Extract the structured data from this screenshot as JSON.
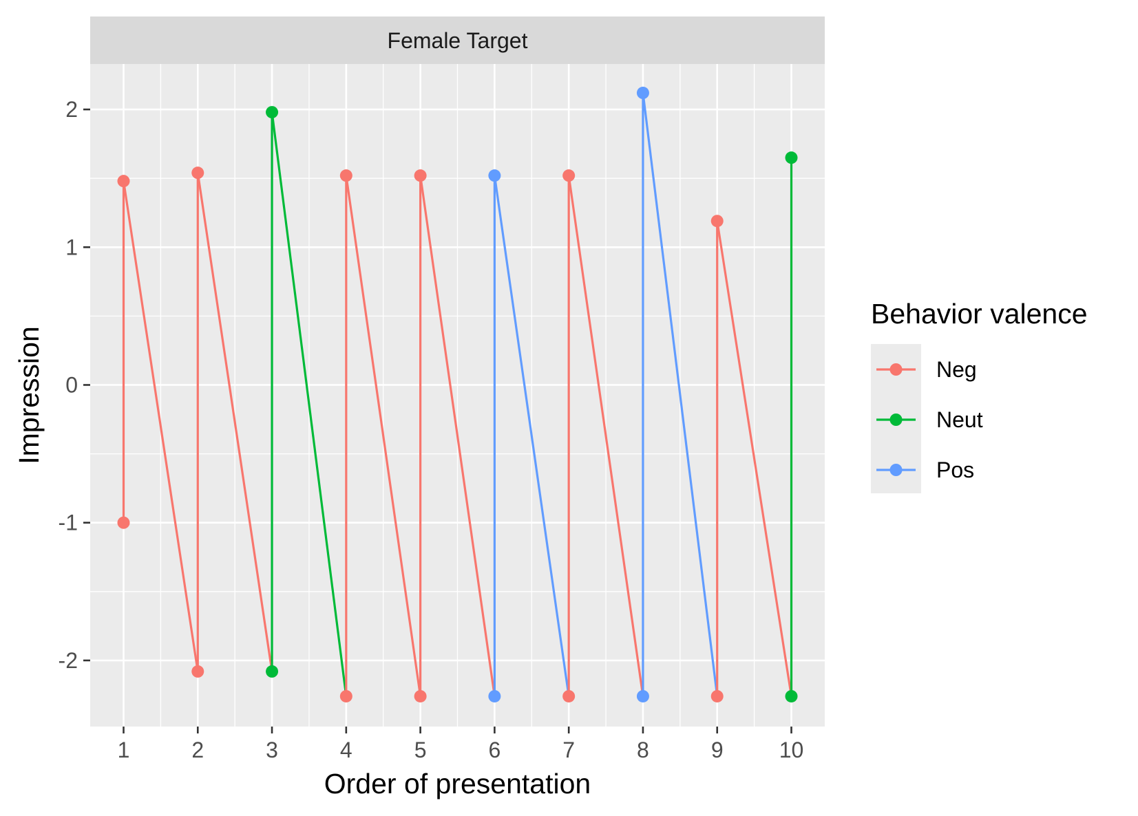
{
  "chart_data": {
    "type": "line",
    "facet_title": "Female Target",
    "xlabel": "Order of presentation",
    "ylabel": "Impression",
    "x_ticks": [
      1,
      2,
      3,
      4,
      5,
      6,
      7,
      8,
      9,
      10
    ],
    "x_tick_labels": [
      "1",
      "2",
      "3",
      "4",
      "5",
      "6",
      "7",
      "8",
      "9",
      "10"
    ],
    "y_ticks": [
      -2,
      -1,
      0,
      1,
      2
    ],
    "y_tick_labels": [
      "-2",
      "-1",
      "0",
      "1",
      "2"
    ],
    "xlim": [
      0.55,
      10.45
    ],
    "ylim": [
      -2.48,
      2.33
    ],
    "grid": true,
    "legend": {
      "title": "Behavior valence",
      "placement": "right",
      "entries": [
        {
          "name": "Neg",
          "color": "#F8766D"
        },
        {
          "name": "Neut",
          "color": "#00BA38"
        },
        {
          "name": "Pos",
          "color": "#619CFF"
        }
      ]
    },
    "path": [
      {
        "x": 1,
        "y": -1.0,
        "group": "Neg"
      },
      {
        "x": 1,
        "y": 1.48,
        "group": "Neg"
      },
      {
        "x": 2,
        "y": -2.08,
        "group": "Neg"
      },
      {
        "x": 2,
        "y": 1.54,
        "group": "Neg"
      },
      {
        "x": 3,
        "y": -2.08,
        "group": "Neut"
      },
      {
        "x": 3,
        "y": 1.98,
        "group": "Neut"
      },
      {
        "x": 4,
        "y": -2.26,
        "group": "Neg"
      },
      {
        "x": 4,
        "y": 1.52,
        "group": "Neg"
      },
      {
        "x": 5,
        "y": -2.26,
        "group": "Neg"
      },
      {
        "x": 5,
        "y": 1.52,
        "group": "Neg"
      },
      {
        "x": 6,
        "y": -2.26,
        "group": "Pos"
      },
      {
        "x": 6,
        "y": 1.52,
        "group": "Pos"
      },
      {
        "x": 7,
        "y": -2.26,
        "group": "Neg"
      },
      {
        "x": 7,
        "y": 1.52,
        "group": "Neg"
      },
      {
        "x": 8,
        "y": -2.26,
        "group": "Pos"
      },
      {
        "x": 8,
        "y": 2.12,
        "group": "Pos"
      },
      {
        "x": 9,
        "y": -2.26,
        "group": "Neg"
      },
      {
        "x": 9,
        "y": 1.19,
        "group": "Neg"
      },
      {
        "x": 10,
        "y": -2.26,
        "group": "Neut"
      },
      {
        "x": 10,
        "y": 1.65,
        "group": "Neut"
      }
    ]
  }
}
